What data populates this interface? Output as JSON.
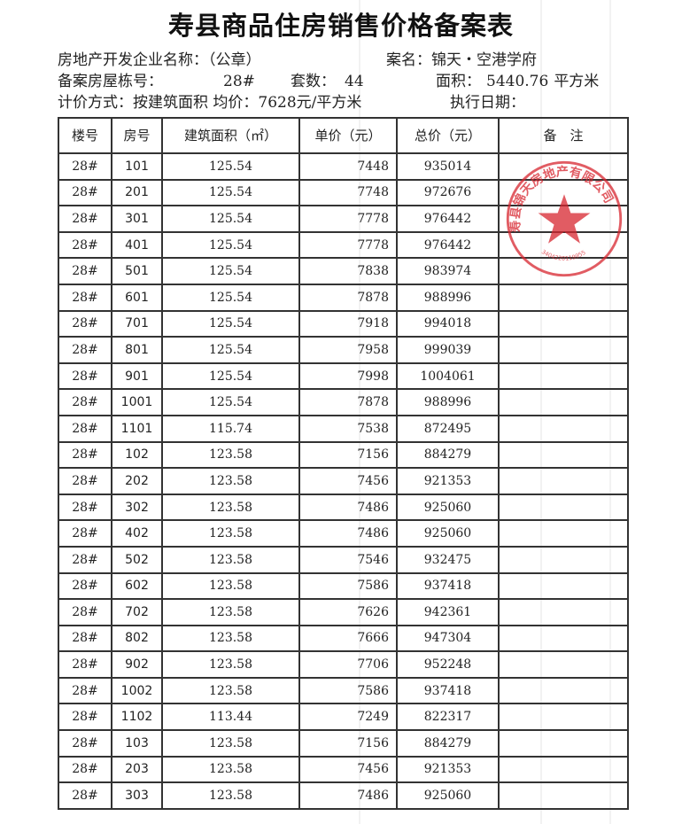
{
  "title": "寿县商品住房销售价格备案表",
  "info": {
    "developer_label": "房地产开发企业名称：（公章）",
    "project_label": "案名：",
    "project_name": "锦天・空港学府",
    "building_label": "备案房屋栋号：",
    "building_value": "28#",
    "units_label": "套数：",
    "units_value": "44",
    "area_label": "面积：",
    "area_value": "5440.76",
    "area_unit": "平方米",
    "pricing_label": "计价方式：按建筑面积",
    "avg_label": "均价：",
    "avg_value": "7628元/平方米",
    "exec_date_label": "执行日期："
  },
  "stamp": {
    "text": "寿县锦天房地产有限公司",
    "code": "3404220119955",
    "color": "#d8262f"
  },
  "table": {
    "headers": [
      "楼号",
      "房号",
      "建筑面积（㎡）",
      "单价（元）",
      "总价（元）",
      "备　注"
    ],
    "rows": [
      [
        "28#",
        "101",
        "125.54",
        "7448",
        "935014",
        ""
      ],
      [
        "28#",
        "201",
        "125.54",
        "7748",
        "972676",
        ""
      ],
      [
        "28#",
        "301",
        "125.54",
        "7778",
        "976442",
        ""
      ],
      [
        "28#",
        "401",
        "125.54",
        "7778",
        "976442",
        ""
      ],
      [
        "28#",
        "501",
        "125.54",
        "7838",
        "983974",
        ""
      ],
      [
        "28#",
        "601",
        "125.54",
        "7878",
        "988996",
        ""
      ],
      [
        "28#",
        "701",
        "125.54",
        "7918",
        "994018",
        ""
      ],
      [
        "28#",
        "801",
        "125.54",
        "7958",
        "999039",
        ""
      ],
      [
        "28#",
        "901",
        "125.54",
        "7998",
        "1004061",
        ""
      ],
      [
        "28#",
        "1001",
        "125.54",
        "7878",
        "988996",
        ""
      ],
      [
        "28#",
        "1101",
        "115.74",
        "7538",
        "872495",
        ""
      ],
      [
        "28#",
        "102",
        "123.58",
        "7156",
        "884279",
        ""
      ],
      [
        "28#",
        "202",
        "123.58",
        "7456",
        "921353",
        ""
      ],
      [
        "28#",
        "302",
        "123.58",
        "7486",
        "925060",
        ""
      ],
      [
        "28#",
        "402",
        "123.58",
        "7486",
        "925060",
        ""
      ],
      [
        "28#",
        "502",
        "123.58",
        "7546",
        "932475",
        ""
      ],
      [
        "28#",
        "602",
        "123.58",
        "7586",
        "937418",
        ""
      ],
      [
        "28#",
        "702",
        "123.58",
        "7626",
        "942361",
        ""
      ],
      [
        "28#",
        "802",
        "123.58",
        "7666",
        "947304",
        ""
      ],
      [
        "28#",
        "902",
        "123.58",
        "7706",
        "952248",
        ""
      ],
      [
        "28#",
        "1002",
        "123.58",
        "7586",
        "937418",
        ""
      ],
      [
        "28#",
        "1102",
        "113.44",
        "7249",
        "822317",
        ""
      ],
      [
        "28#",
        "103",
        "123.58",
        "7156",
        "884279",
        ""
      ],
      [
        "28#",
        "203",
        "123.58",
        "7456",
        "921353",
        ""
      ],
      [
        "28#",
        "303",
        "123.58",
        "7486",
        "925060",
        ""
      ]
    ]
  }
}
